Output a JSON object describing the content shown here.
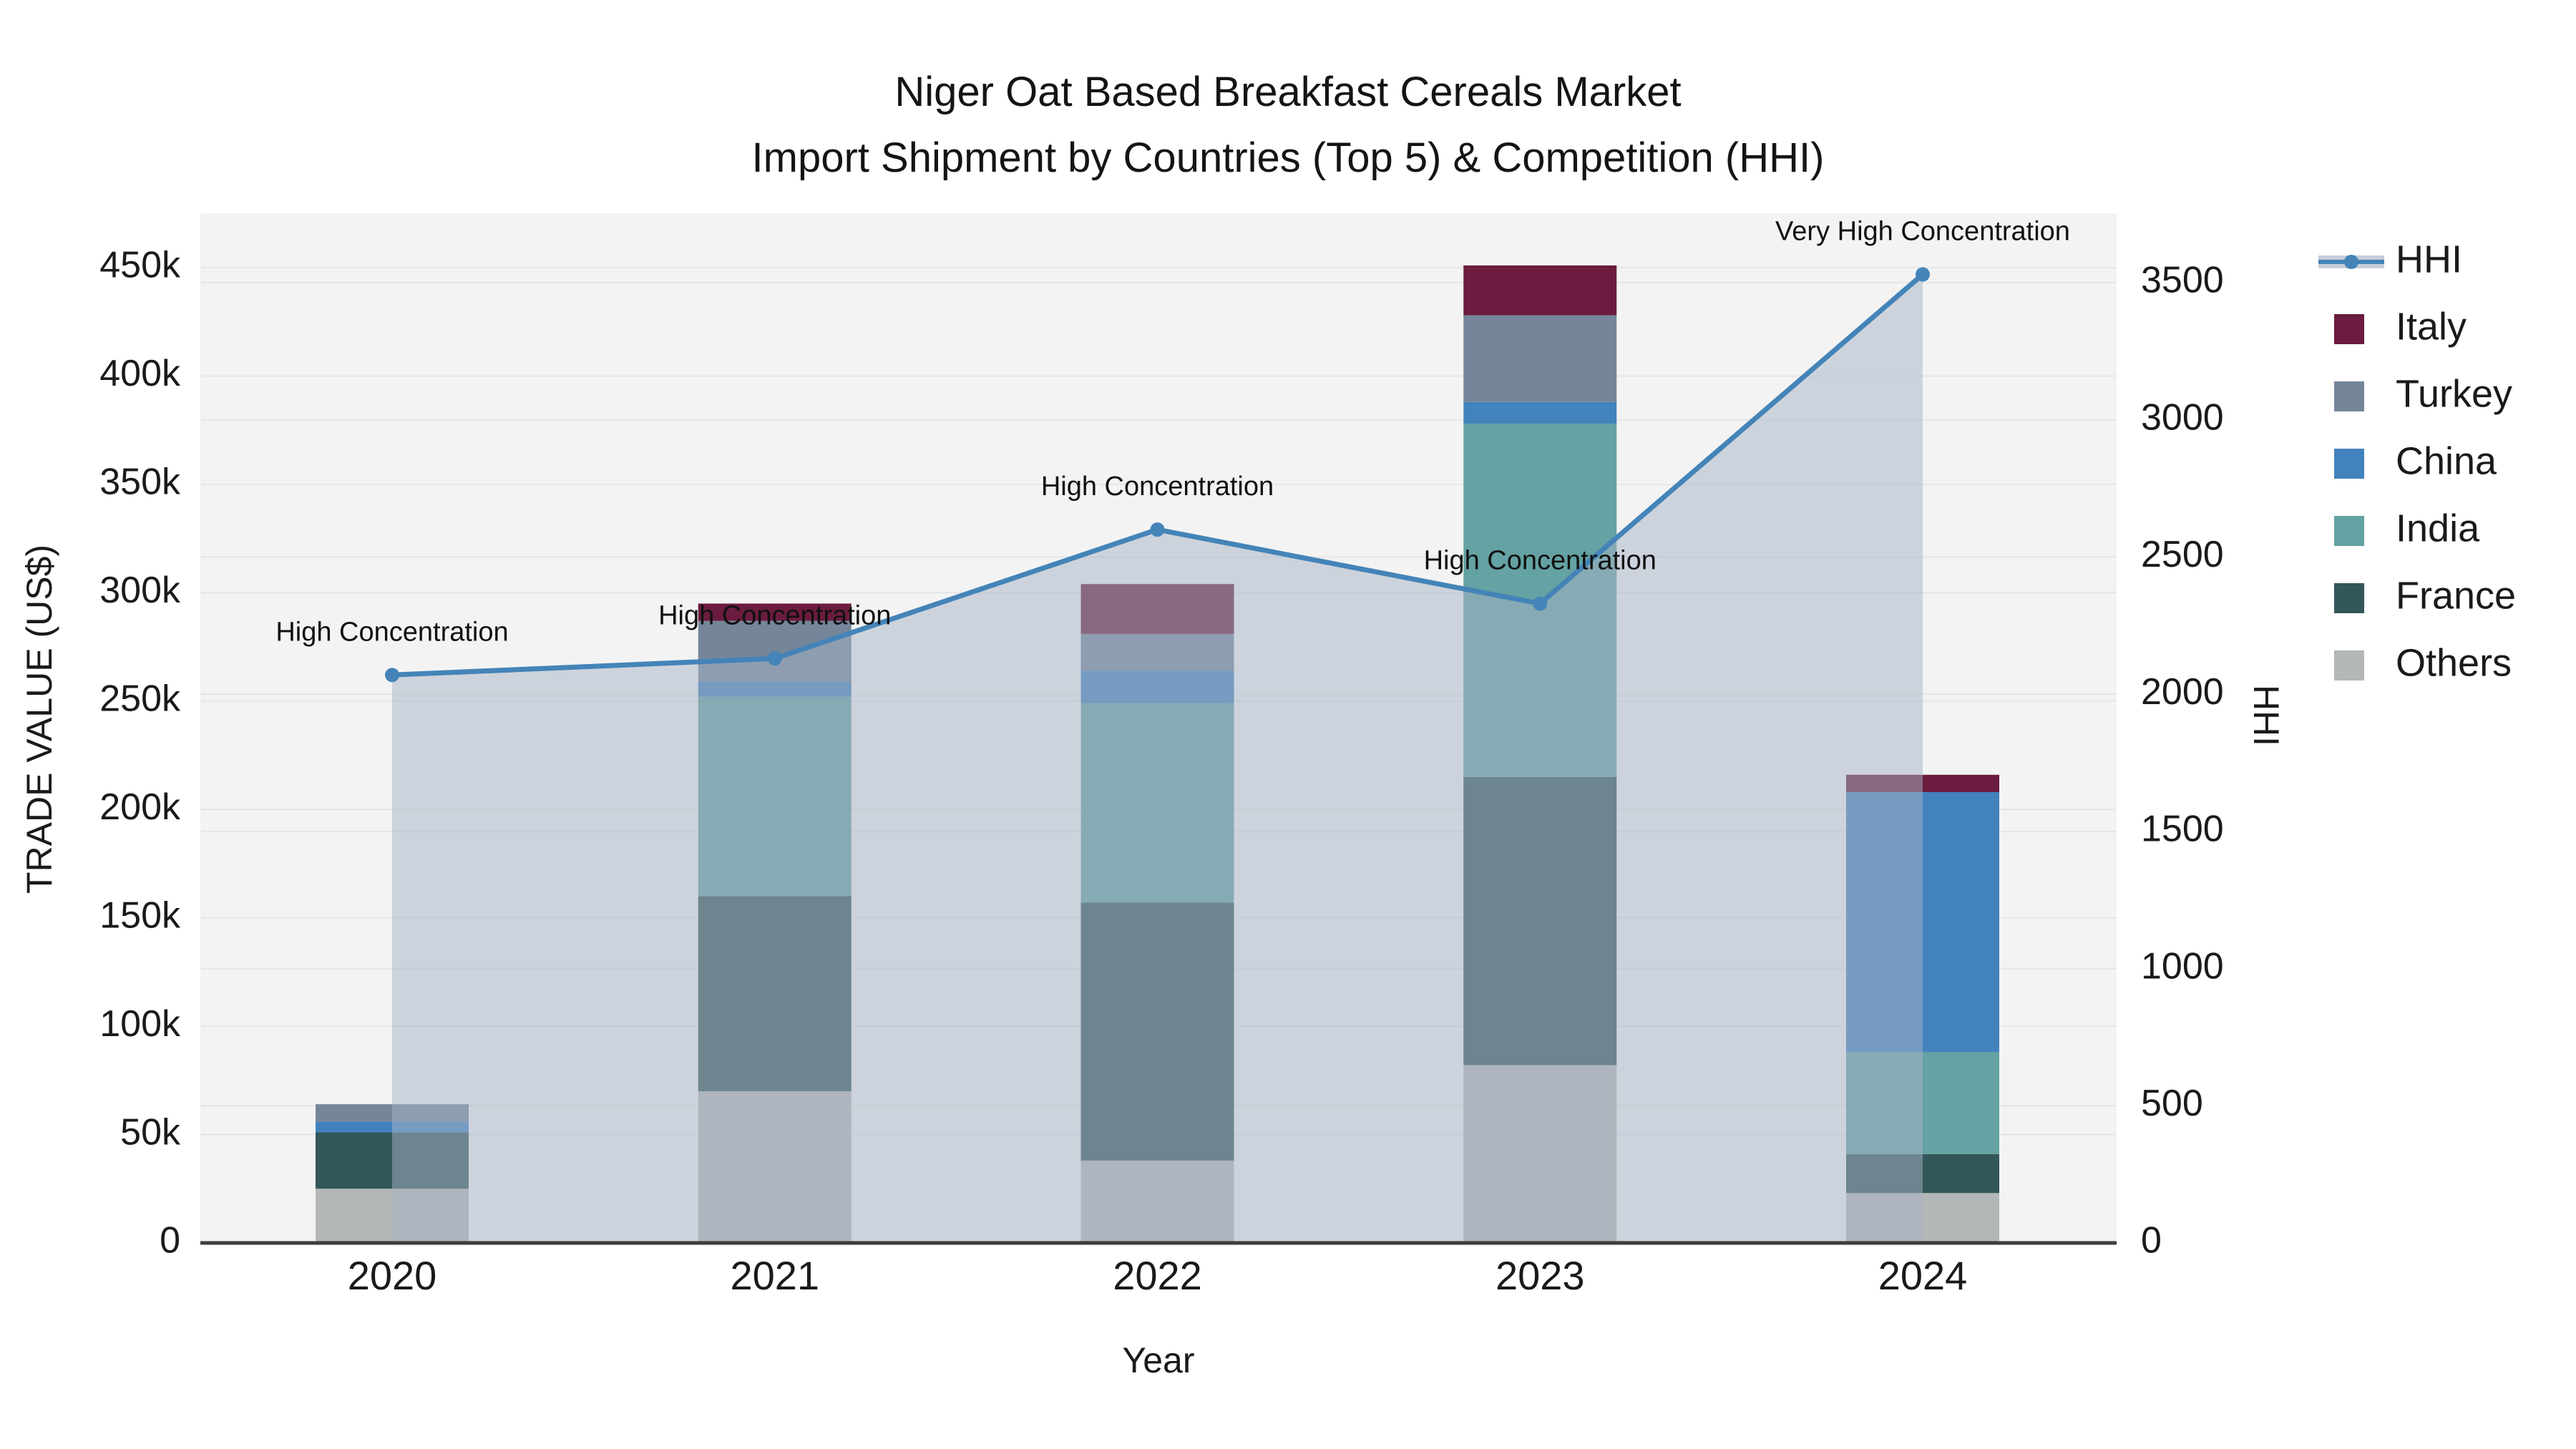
{
  "title": {
    "line1": "Niger Oat Based Breakfast Cereals Market",
    "line2": "Import Shipment by Countries (Top 5) & Competition (HHI)"
  },
  "colors": {
    "page_bg": "#ffffff",
    "plot_bg": "#f3f3f3",
    "gridline": "#e5e6e8",
    "axis_line": "#3c3c3c",
    "text": "#1a1a1a",
    "hhi_line": "#4484b8",
    "hhi_area": "rgba(167,180,198,0.5)",
    "legend_band": "#c5cdd8"
  },
  "chart_data": {
    "type": "combo-stacked-bar-line",
    "categories": [
      "2020",
      "2021",
      "2022",
      "2023",
      "2024"
    ],
    "xlabel": "Year",
    "y_left": {
      "label": "TRADE VALUE (US$)",
      "tick_labels": [
        "0",
        "50k",
        "100k",
        "150k",
        "200k",
        "250k",
        "300k",
        "350k",
        "400k",
        "450k"
      ],
      "tick_values": [
        0,
        50000,
        100000,
        150000,
        200000,
        250000,
        300000,
        350000,
        400000,
        450000
      ],
      "range": [
        0,
        450000
      ]
    },
    "y_right": {
      "label": "HHI",
      "tick_labels": [
        "0",
        "500",
        "1000",
        "1500",
        "2000",
        "2500",
        "3000",
        "3500"
      ],
      "tick_values": [
        0,
        500,
        1000,
        1500,
        2000,
        2500,
        3000,
        3500
      ],
      "range": [
        0,
        3500
      ]
    },
    "bar_series_bottom_to_top": [
      {
        "name": "Others",
        "color": "#b4b7b7",
        "values_usd": [
          25000,
          70000,
          38000,
          82000,
          23000
        ]
      },
      {
        "name": "France",
        "color": "#335659",
        "values_usd": [
          26000,
          90000,
          119000,
          133000,
          18000
        ]
      },
      {
        "name": "India",
        "color": "#64a2a3",
        "values_usd": [
          0,
          92000,
          92000,
          163000,
          47000
        ]
      },
      {
        "name": "China",
        "color": "#4383bd",
        "values_usd": [
          5000,
          7000,
          15000,
          10000,
          120000
        ]
      },
      {
        "name": "Turkey",
        "color": "#75869a",
        "values_usd": [
          8000,
          28000,
          17000,
          40000,
          0
        ]
      },
      {
        "name": "Italy",
        "color": "#6b1c3f",
        "values_usd": [
          0,
          8000,
          23000,
          23000,
          8000
        ]
      }
    ],
    "bar_totals_usd": [
      64000,
      295000,
      304000,
      451000,
      216000
    ],
    "line_series": {
      "name": "HHI",
      "values": [
        2070,
        2130,
        2600,
        2330,
        3530
      ]
    },
    "annotations": [
      {
        "year": "2020",
        "year_index": 0,
        "text": "High Concentration"
      },
      {
        "year": "2021",
        "year_index": 1,
        "text": "High Concentration"
      },
      {
        "year": "2022",
        "year_index": 2,
        "text": "High Concentration"
      },
      {
        "year": "2023",
        "year_index": 3,
        "text": "High Concentration"
      },
      {
        "year": "2024",
        "year_index": 4,
        "text": "Very High Concentration"
      }
    ],
    "legend": {
      "position": "right",
      "items": [
        {
          "label": "HHI",
          "type": "line",
          "color": "#4484b8"
        },
        {
          "label": "Italy",
          "type": "swatch",
          "color": "#6b1c3f"
        },
        {
          "label": "Turkey",
          "type": "swatch",
          "color": "#75869a"
        },
        {
          "label": "China",
          "type": "swatch",
          "color": "#4383bd"
        },
        {
          "label": "India",
          "type": "swatch",
          "color": "#64a2a3"
        },
        {
          "label": "France",
          "type": "swatch",
          "color": "#335659"
        },
        {
          "label": "Others",
          "type": "swatch",
          "color": "#b4b7b7"
        }
      ]
    }
  }
}
